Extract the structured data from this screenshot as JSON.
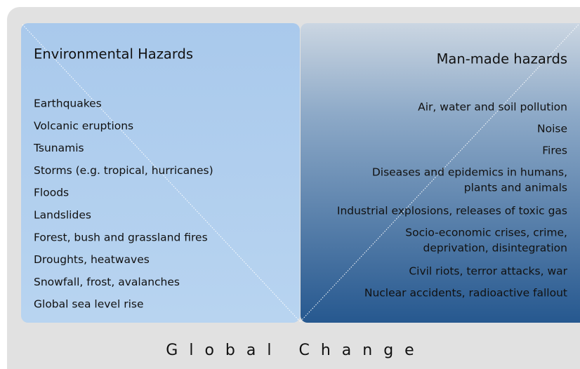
{
  "left": {
    "title": "Environmental Hazards",
    "items": [
      "Earthquakes",
      "Volcanic eruptions",
      "Tsunamis",
      "Storms (e.g. tropical, hurricanes)",
      "Floods",
      "Landslides",
      "Forest, bush and grassland fires",
      "Droughts, heatwaves",
      "Snowfall, frost, avalanches",
      "Global sea level rise"
    ]
  },
  "right": {
    "title": "Man-made hazards",
    "items": [
      [
        "Air, water and soil pollution"
      ],
      [
        "Noise"
      ],
      [
        "Fires"
      ],
      [
        "Diseases and epidemics in humans,",
        "plants and animals"
      ],
      [
        "Industrial explosions, releases of toxic gas"
      ],
      [
        "Socio-economic crises, crime,",
        "deprivation, disintegration"
      ],
      [
        "Civil riots, terror attacks, war"
      ],
      [
        "Nuclear accidents, radioactive fallout"
      ]
    ]
  },
  "footer": "Global Change"
}
